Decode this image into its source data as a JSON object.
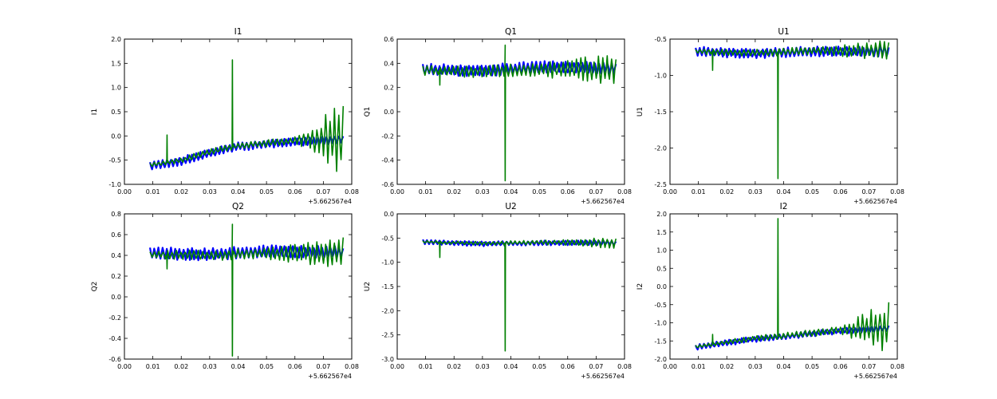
{
  "chart_data": [
    {
      "type": "line",
      "title": "I1",
      "xlabel": "",
      "ylabel": "I1",
      "xlim": [
        0.0,
        0.08
      ],
      "ylim": [
        -1.0,
        2.0
      ],
      "xticks": [
        "0.00",
        "0.01",
        "0.02",
        "0.03",
        "0.04",
        "0.05",
        "0.06",
        "0.07",
        "0.08"
      ],
      "yticks": [
        "-1.0",
        "-0.5",
        "0.0",
        "0.5",
        "1.0",
        "1.5",
        "2.0"
      ],
      "x_offset_label": "+5.662567e4",
      "grid": false,
      "series": [
        {
          "color": "#0000ff",
          "x_range": [
            0.009,
            0.077
          ],
          "trend": [
            [
              0.009,
              -0.62
            ],
            [
              0.02,
              -0.52
            ],
            [
              0.03,
              -0.35
            ],
            [
              0.04,
              -0.22
            ],
            [
              0.05,
              -0.17
            ],
            [
              0.06,
              -0.12
            ],
            [
              0.077,
              -0.07
            ]
          ],
          "band": 0.09,
          "cycles": 46
        },
        {
          "color": "#008000",
          "x_range": [
            0.009,
            0.077
          ],
          "trend": [
            [
              0.009,
              -0.6
            ],
            [
              0.02,
              -0.5
            ],
            [
              0.03,
              -0.33
            ],
            [
              0.04,
              -0.2
            ],
            [
              0.05,
              -0.15
            ],
            [
              0.06,
              -0.1
            ],
            [
              0.077,
              -0.05
            ]
          ],
          "amp": [
            [
              0.009,
              0.05
            ],
            [
              0.06,
              0.08
            ],
            [
              0.065,
              0.2
            ],
            [
              0.077,
              0.85
            ]
          ],
          "cycles": 44,
          "spikes": [
            [
              0.015,
              0.02
            ],
            [
              0.038,
              1.57
            ]
          ]
        }
      ]
    },
    {
      "type": "line",
      "title": "Q1",
      "xlabel": "",
      "ylabel": "Q1",
      "xlim": [
        0.0,
        0.08
      ],
      "ylim": [
        -0.6,
        0.6
      ],
      "xticks": [
        "0.00",
        "0.01",
        "0.02",
        "0.03",
        "0.04",
        "0.05",
        "0.06",
        "0.07",
        "0.08"
      ],
      "yticks": [
        "-0.6",
        "-0.4",
        "-0.2",
        "0.0",
        "0.2",
        "0.4",
        "0.6"
      ],
      "x_offset_label": "+5.662567e4",
      "grid": false,
      "series": [
        {
          "color": "#0000ff",
          "x_range": [
            0.009,
            0.077
          ],
          "trend": [
            [
              0.009,
              0.35
            ],
            [
              0.03,
              0.34
            ],
            [
              0.05,
              0.37
            ],
            [
              0.077,
              0.36
            ]
          ],
          "band": 0.05,
          "cycles": 46
        },
        {
          "color": "#008000",
          "x_range": [
            0.009,
            0.077
          ],
          "trend": [
            [
              0.009,
              0.34
            ],
            [
              0.03,
              0.33
            ],
            [
              0.05,
              0.35
            ],
            [
              0.077,
              0.35
            ]
          ],
          "amp": [
            [
              0.009,
              0.04
            ],
            [
              0.05,
              0.06
            ],
            [
              0.077,
              0.14
            ]
          ],
          "cycles": 44,
          "spikes": [
            [
              0.015,
              0.22
            ],
            [
              0.038,
              0.55
            ],
            [
              0.038,
              -0.57
            ]
          ]
        }
      ]
    },
    {
      "type": "line",
      "title": "U1",
      "xlabel": "",
      "ylabel": "U1",
      "xlim": [
        0.0,
        0.08
      ],
      "ylim": [
        -2.5,
        -0.5
      ],
      "xticks": [
        "0.00",
        "0.01",
        "0.02",
        "0.03",
        "0.04",
        "0.05",
        "0.06",
        "0.07",
        "0.08"
      ],
      "yticks": [
        "-2.5",
        "-2.0",
        "-1.5",
        "-1.0",
        "-0.5"
      ],
      "x_offset_label": "+5.662567e4",
      "grid": false,
      "series": [
        {
          "color": "#0000ff",
          "x_range": [
            0.009,
            0.077
          ],
          "trend": [
            [
              0.009,
              -0.67
            ],
            [
              0.03,
              -0.7
            ],
            [
              0.05,
              -0.67
            ],
            [
              0.077,
              -0.67
            ]
          ],
          "band": 0.07,
          "cycles": 46
        },
        {
          "color": "#008000",
          "x_range": [
            0.009,
            0.077
          ],
          "trend": [
            [
              0.009,
              -0.67
            ],
            [
              0.03,
              -0.69
            ],
            [
              0.05,
              -0.66
            ],
            [
              0.077,
              -0.66
            ]
          ],
          "amp": [
            [
              0.009,
              0.04
            ],
            [
              0.055,
              0.06
            ],
            [
              0.077,
              0.15
            ]
          ],
          "cycles": 44,
          "spikes": [
            [
              0.015,
              -0.93
            ],
            [
              0.038,
              -2.42
            ]
          ]
        }
      ]
    },
    {
      "type": "line",
      "title": "Q2",
      "xlabel": "",
      "ylabel": "Q2",
      "xlim": [
        0.0,
        0.08
      ],
      "ylim": [
        -0.6,
        0.8
      ],
      "xticks": [
        "0.00",
        "0.01",
        "0.02",
        "0.03",
        "0.04",
        "0.05",
        "0.06",
        "0.07",
        "0.08"
      ],
      "yticks": [
        "-0.6",
        "-0.4",
        "-0.2",
        "0.0",
        "0.2",
        "0.4",
        "0.6",
        "0.8"
      ],
      "x_offset_label": "+5.662567e4",
      "grid": false,
      "series": [
        {
          "color": "#0000ff",
          "x_range": [
            0.009,
            0.077
          ],
          "trend": [
            [
              0.009,
              0.42
            ],
            [
              0.03,
              0.41
            ],
            [
              0.05,
              0.44
            ],
            [
              0.077,
              0.43
            ]
          ],
          "band": 0.06,
          "cycles": 46
        },
        {
          "color": "#008000",
          "x_range": [
            0.009,
            0.077
          ],
          "trend": [
            [
              0.009,
              0.41
            ],
            [
              0.03,
              0.4
            ],
            [
              0.05,
              0.42
            ],
            [
              0.077,
              0.42
            ]
          ],
          "amp": [
            [
              0.009,
              0.04
            ],
            [
              0.05,
              0.06
            ],
            [
              0.077,
              0.16
            ]
          ],
          "cycles": 44,
          "spikes": [
            [
              0.015,
              0.27
            ],
            [
              0.038,
              0.7
            ],
            [
              0.038,
              -0.57
            ]
          ]
        }
      ]
    },
    {
      "type": "line",
      "title": "U2",
      "xlabel": "",
      "ylabel": "U2",
      "xlim": [
        0.0,
        0.08
      ],
      "ylim": [
        -3.0,
        0.0
      ],
      "xticks": [
        "0.00",
        "0.01",
        "0.02",
        "0.03",
        "0.04",
        "0.05",
        "0.06",
        "0.07",
        "0.08"
      ],
      "yticks": [
        "-3.0",
        "-2.5",
        "-2.0",
        "-1.5",
        "-1.0",
        "-0.5",
        "0.0"
      ],
      "x_offset_label": "+5.662567e4",
      "grid": false,
      "series": [
        {
          "color": "#0000ff",
          "x_range": [
            0.009,
            0.077
          ],
          "trend": [
            [
              0.009,
              -0.58
            ],
            [
              0.03,
              -0.62
            ],
            [
              0.05,
              -0.6
            ],
            [
              0.077,
              -0.6
            ]
          ],
          "band": 0.05,
          "cycles": 46
        },
        {
          "color": "#008000",
          "x_range": [
            0.009,
            0.077
          ],
          "trend": [
            [
              0.009,
              -0.58
            ],
            [
              0.03,
              -0.61
            ],
            [
              0.05,
              -0.59
            ],
            [
              0.077,
              -0.6
            ]
          ],
          "amp": [
            [
              0.009,
              0.03
            ],
            [
              0.055,
              0.05
            ],
            [
              0.077,
              0.12
            ]
          ],
          "cycles": 44,
          "spikes": [
            [
              0.015,
              -0.9
            ],
            [
              0.038,
              -2.83
            ]
          ]
        }
      ]
    },
    {
      "type": "line",
      "title": "I2",
      "xlabel": "",
      "ylabel": "I2",
      "xlim": [
        0.0,
        0.08
      ],
      "ylim": [
        -2.0,
        2.0
      ],
      "xticks": [
        "0.00",
        "0.01",
        "0.02",
        "0.03",
        "0.04",
        "0.05",
        "0.06",
        "0.07",
        "0.08"
      ],
      "yticks": [
        "-2.0",
        "-1.5",
        "-1.0",
        "-0.5",
        "0.0",
        "0.5",
        "1.0",
        "1.5",
        "2.0"
      ],
      "x_offset_label": "+5.662567e4",
      "grid": false,
      "series": [
        {
          "color": "#0000ff",
          "x_range": [
            0.009,
            0.077
          ],
          "trend": [
            [
              0.009,
              -1.68
            ],
            [
              0.02,
              -1.55
            ],
            [
              0.03,
              -1.45
            ],
            [
              0.04,
              -1.38
            ],
            [
              0.05,
              -1.3
            ],
            [
              0.06,
              -1.22
            ],
            [
              0.077,
              -1.15
            ]
          ],
          "band": 0.08,
          "cycles": 46
        },
        {
          "color": "#008000",
          "x_range": [
            0.009,
            0.077
          ],
          "trend": [
            [
              0.009,
              -1.66
            ],
            [
              0.02,
              -1.53
            ],
            [
              0.03,
              -1.43
            ],
            [
              0.04,
              -1.36
            ],
            [
              0.05,
              -1.28
            ],
            [
              0.06,
              -1.2
            ],
            [
              0.077,
              -1.12
            ]
          ],
          "amp": [
            [
              0.009,
              0.06
            ],
            [
              0.06,
              0.1
            ],
            [
              0.065,
              0.3
            ],
            [
              0.077,
              0.75
            ]
          ],
          "cycles": 44,
          "spikes": [
            [
              0.015,
              -1.32
            ],
            [
              0.038,
              1.87
            ]
          ]
        }
      ]
    }
  ]
}
